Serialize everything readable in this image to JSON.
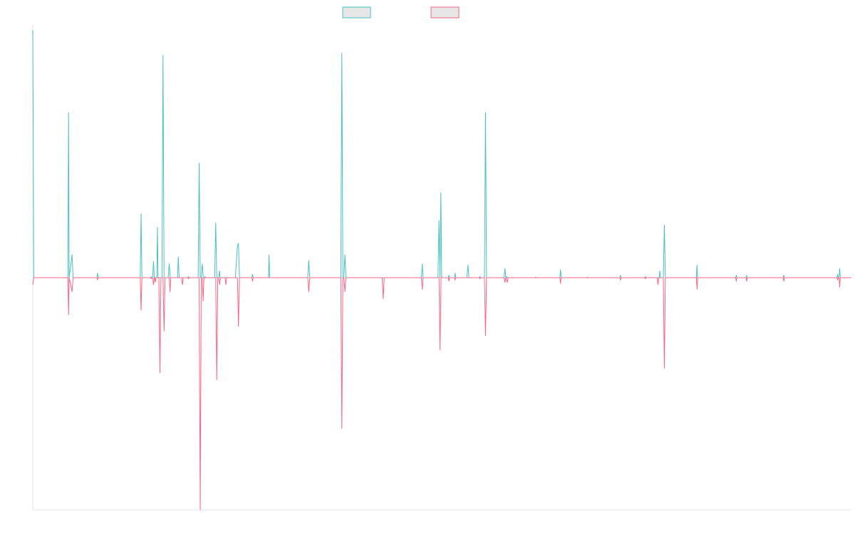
{
  "chart_data": {
    "type": "line",
    "title": "",
    "xlabel": "",
    "ylabel": "",
    "grid": false,
    "legend": "top-center",
    "xlim": [
      0,
      396
    ],
    "ylim": [
      -100,
      100
    ],
    "baseline": 0,
    "series": [
      {
        "name": "",
        "color": "#4bc0c0",
        "fill": "#e6e6e6",
        "values": [
          [
            0,
            108
          ],
          [
            0.5,
            0
          ],
          [
            17,
            0
          ],
          [
            17.3,
            72
          ],
          [
            17.6,
            0
          ],
          [
            19,
            10
          ],
          [
            19.5,
            0
          ],
          [
            31,
            0
          ],
          [
            31.3,
            2
          ],
          [
            31.6,
            0
          ],
          [
            52,
            0
          ],
          [
            52.4,
            28
          ],
          [
            52.8,
            0
          ],
          [
            57,
            0
          ],
          [
            57.3,
            0.5
          ],
          [
            57.6,
            0
          ],
          [
            58,
            0
          ],
          [
            58.4,
            7
          ],
          [
            58.8,
            0
          ],
          [
            60,
            0
          ],
          [
            60.3,
            22
          ],
          [
            60.6,
            0
          ],
          [
            62.5,
            0
          ],
          [
            63,
            97
          ],
          [
            63.5,
            0
          ],
          [
            65.5,
            0
          ],
          [
            66,
            6
          ],
          [
            66.5,
            0
          ],
          [
            70,
            0
          ],
          [
            70.4,
            9
          ],
          [
            70.8,
            0
          ],
          [
            75,
            0
          ],
          [
            75.3,
            0.5
          ],
          [
            75.6,
            0
          ],
          [
            80,
            0
          ],
          [
            80.5,
            50
          ],
          [
            81,
            0
          ],
          [
            81.5,
            0
          ],
          [
            82,
            6
          ],
          [
            82.5,
            0
          ],
          [
            83,
            0
          ],
          [
            83.3,
            0.5
          ],
          [
            83.6,
            0
          ],
          [
            88,
            0
          ],
          [
            88.5,
            24
          ],
          [
            89,
            0
          ],
          [
            90,
            0
          ],
          [
            90.3,
            3
          ],
          [
            90.6,
            0
          ],
          [
            98,
            0
          ],
          [
            99,
            14
          ],
          [
            99.5,
            15
          ],
          [
            100,
            0
          ],
          [
            106,
            0
          ],
          [
            106.3,
            1.5
          ],
          [
            106.6,
            0
          ],
          [
            114,
            0
          ],
          [
            114.3,
            10
          ],
          [
            114.6,
            0
          ],
          [
            133,
            0
          ],
          [
            133.5,
            7.5
          ],
          [
            134,
            0
          ],
          [
            149,
            0
          ],
          [
            149.5,
            98
          ],
          [
            150,
            0
          ],
          [
            150.5,
            0
          ],
          [
            151,
            10
          ],
          [
            151.5,
            0
          ],
          [
            188,
            0
          ],
          [
            188.4,
            6
          ],
          [
            188.8,
            0
          ],
          [
            196,
            0
          ],
          [
            196.5,
            25
          ],
          [
            197,
            0
          ],
          [
            197.4,
            37
          ],
          [
            197.8,
            0
          ],
          [
            201,
            0
          ],
          [
            201.3,
            1
          ],
          [
            201.6,
            0
          ],
          [
            204,
            0
          ],
          [
            204.3,
            2
          ],
          [
            204.6,
            0
          ],
          [
            210,
            0
          ],
          [
            210.5,
            5.5
          ],
          [
            211,
            0
          ],
          [
            216,
            0
          ],
          [
            216.3,
            0.5
          ],
          [
            216.6,
            0
          ],
          [
            218.5,
            0
          ],
          [
            219,
            72
          ],
          [
            219.5,
            0
          ],
          [
            228,
            0
          ],
          [
            228.4,
            4
          ],
          [
            228.8,
            0
          ],
          [
            229,
            0
          ],
          [
            229.3,
            0.5
          ],
          [
            229.6,
            0
          ],
          [
            243,
            0
          ],
          [
            243.3,
            0.3
          ],
          [
            243.6,
            0
          ],
          [
            255,
            0
          ],
          [
            255.3,
            3.5
          ],
          [
            255.6,
            0
          ],
          [
            268,
            0
          ],
          [
            268.3,
            0.3
          ],
          [
            268.6,
            0
          ],
          [
            284,
            0
          ],
          [
            284.3,
            1
          ],
          [
            284.6,
            0
          ],
          [
            296,
            0
          ],
          [
            296.3,
            0.5
          ],
          [
            296.6,
            0
          ],
          [
            303,
            0
          ],
          [
            303.3,
            3
          ],
          [
            303.6,
            0
          ],
          [
            305,
            0
          ],
          [
            305.5,
            23
          ],
          [
            306,
            0
          ],
          [
            321,
            0
          ],
          [
            321.3,
            5.5
          ],
          [
            321.6,
            0
          ],
          [
            340,
            0
          ],
          [
            340.3,
            1
          ],
          [
            340.6,
            0
          ],
          [
            345,
            0
          ],
          [
            345.3,
            1
          ],
          [
            345.6,
            0
          ],
          [
            363,
            0
          ],
          [
            363.3,
            1
          ],
          [
            363.6,
            0
          ],
          [
            389,
            0
          ],
          [
            389.3,
            1.5
          ],
          [
            389.6,
            0
          ],
          [
            390,
            0
          ],
          [
            390.3,
            4
          ],
          [
            390.6,
            0
          ],
          [
            396,
            0
          ]
        ]
      },
      {
        "name": "",
        "color": "#ff6384",
        "fill": "#e6e6e6",
        "values": [
          [
            0,
            -3
          ],
          [
            0.5,
            0
          ],
          [
            17,
            0
          ],
          [
            17.3,
            -16
          ],
          [
            17.6,
            0
          ],
          [
            19,
            -6
          ],
          [
            19.5,
            0
          ],
          [
            31,
            0
          ],
          [
            31.3,
            -1
          ],
          [
            31.6,
            0
          ],
          [
            52,
            0
          ],
          [
            52.4,
            -14
          ],
          [
            52.8,
            0
          ],
          [
            57,
            0
          ],
          [
            57.3,
            -0.5
          ],
          [
            57.6,
            0
          ],
          [
            58,
            0
          ],
          [
            58.4,
            -3
          ],
          [
            58.8,
            0
          ],
          [
            59,
            0
          ],
          [
            59.3,
            -2
          ],
          [
            59.6,
            0
          ],
          [
            61,
            0
          ],
          [
            61.5,
            -41
          ],
          [
            62,
            0
          ],
          [
            63,
            0
          ],
          [
            63.5,
            -23
          ],
          [
            64,
            0
          ],
          [
            66,
            0
          ],
          [
            66.4,
            -6
          ],
          [
            66.8,
            0
          ],
          [
            72,
            0
          ],
          [
            72.4,
            -3
          ],
          [
            72.8,
            0
          ],
          [
            75,
            0
          ],
          [
            75.3,
            -0.5
          ],
          [
            75.6,
            0
          ],
          [
            80.5,
            0
          ],
          [
            81,
            -100
          ],
          [
            81.5,
            0
          ],
          [
            82,
            0
          ],
          [
            82.4,
            -10
          ],
          [
            82.8,
            0
          ],
          [
            88.5,
            0
          ],
          [
            89,
            -44
          ],
          [
            89.5,
            0
          ],
          [
            90,
            0
          ],
          [
            90.4,
            -3
          ],
          [
            90.8,
            0
          ],
          [
            93,
            0
          ],
          [
            93.4,
            -3
          ],
          [
            93.8,
            0
          ],
          [
            99,
            0
          ],
          [
            99.5,
            -21
          ],
          [
            100,
            0
          ],
          [
            106,
            0
          ],
          [
            106.3,
            -1.5
          ],
          [
            106.6,
            0
          ],
          [
            133,
            0
          ],
          [
            133.5,
            -6
          ],
          [
            134,
            0
          ],
          [
            149,
            0
          ],
          [
            149.5,
            -65
          ],
          [
            150,
            0
          ],
          [
            150.5,
            0
          ],
          [
            151,
            -6
          ],
          [
            151.5,
            0
          ],
          [
            169,
            0
          ],
          [
            169.5,
            -9
          ],
          [
            170,
            0
          ],
          [
            188,
            0
          ],
          [
            188.4,
            -5
          ],
          [
            188.8,
            0
          ],
          [
            196.5,
            0
          ],
          [
            197,
            -31
          ],
          [
            197.5,
            0
          ],
          [
            201,
            0
          ],
          [
            201.3,
            -1.5
          ],
          [
            201.6,
            0
          ],
          [
            204,
            0
          ],
          [
            204.3,
            -1
          ],
          [
            204.6,
            0
          ],
          [
            216,
            0
          ],
          [
            216.3,
            -0.5
          ],
          [
            216.6,
            0
          ],
          [
            218.5,
            0
          ],
          [
            219,
            -25
          ],
          [
            219.5,
            0
          ],
          [
            228,
            0
          ],
          [
            228.4,
            -2
          ],
          [
            228.8,
            0
          ],
          [
            229,
            0
          ],
          [
            229.5,
            -2
          ],
          [
            230,
            0
          ],
          [
            255,
            0
          ],
          [
            255.3,
            -2.5
          ],
          [
            255.6,
            0
          ],
          [
            284,
            0
          ],
          [
            284.3,
            -1
          ],
          [
            284.6,
            0
          ],
          [
            296,
            0
          ],
          [
            296.3,
            -0.5
          ],
          [
            296.6,
            0
          ],
          [
            302,
            0
          ],
          [
            302.4,
            -3
          ],
          [
            302.8,
            0
          ],
          [
            305,
            0
          ],
          [
            305.5,
            -39
          ],
          [
            306,
            0
          ],
          [
            321,
            0
          ],
          [
            321.3,
            -5
          ],
          [
            321.6,
            0
          ],
          [
            340,
            0
          ],
          [
            340.3,
            -1.5
          ],
          [
            340.6,
            0
          ],
          [
            345,
            0
          ],
          [
            345.3,
            -1.5
          ],
          [
            345.6,
            0
          ],
          [
            363,
            0
          ],
          [
            363.3,
            -1.5
          ],
          [
            363.6,
            0
          ],
          [
            389,
            0
          ],
          [
            389.3,
            -1
          ],
          [
            389.6,
            0
          ],
          [
            390,
            0
          ],
          [
            390.3,
            -4
          ],
          [
            390.6,
            0
          ],
          [
            396,
            0
          ]
        ]
      }
    ]
  }
}
